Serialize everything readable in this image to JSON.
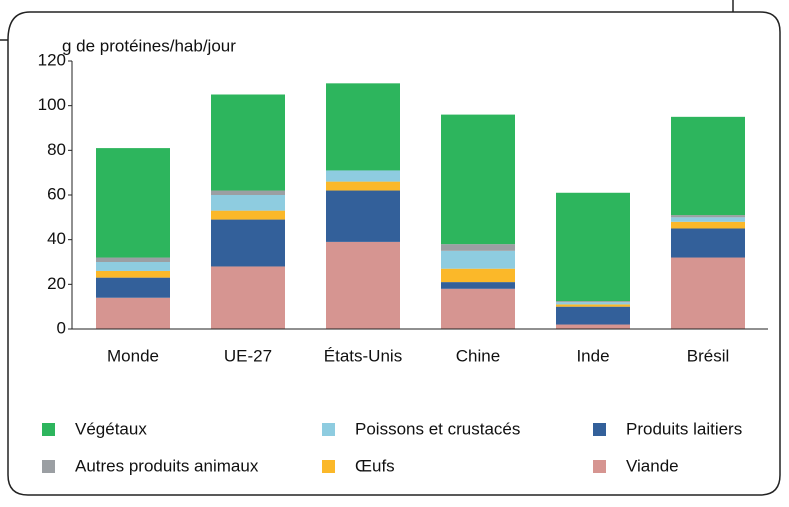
{
  "chart_data": {
    "type": "stacked_bar",
    "y_label": "g de protéines/hab/jour",
    "categories": [
      "Monde",
      "UE-27",
      "États-Unis",
      "Chine",
      "Inde",
      "Brésil"
    ],
    "series": [
      {
        "name": "Viande",
        "color": "#d69591",
        "values": [
          14,
          28,
          39,
          18,
          2,
          32
        ]
      },
      {
        "name": "Produits laitiers",
        "color": "#33609a",
        "values": [
          9,
          21,
          23,
          3,
          8,
          13
        ]
      },
      {
        "name": "Œufs",
        "color": "#fbb829",
        "values": [
          3,
          4,
          4,
          6,
          1,
          3
        ]
      },
      {
        "name": "Poissons et crustacés",
        "color": "#8ecce0",
        "values": [
          4,
          7,
          5,
          8,
          1,
          2
        ]
      },
      {
        "name": "Autres produits animaux",
        "color": "#9b9fa3",
        "values": [
          2,
          2,
          0,
          3,
          0.5,
          1
        ]
      },
      {
        "name": "Végétaux",
        "color": "#2db55d",
        "values": [
          49,
          43,
          39,
          58,
          48.5,
          44
        ]
      }
    ],
    "ylim": [
      0,
      120
    ],
    "yticks": [
      0,
      20,
      40,
      60,
      80,
      100,
      120
    ],
    "grid": false
  }
}
